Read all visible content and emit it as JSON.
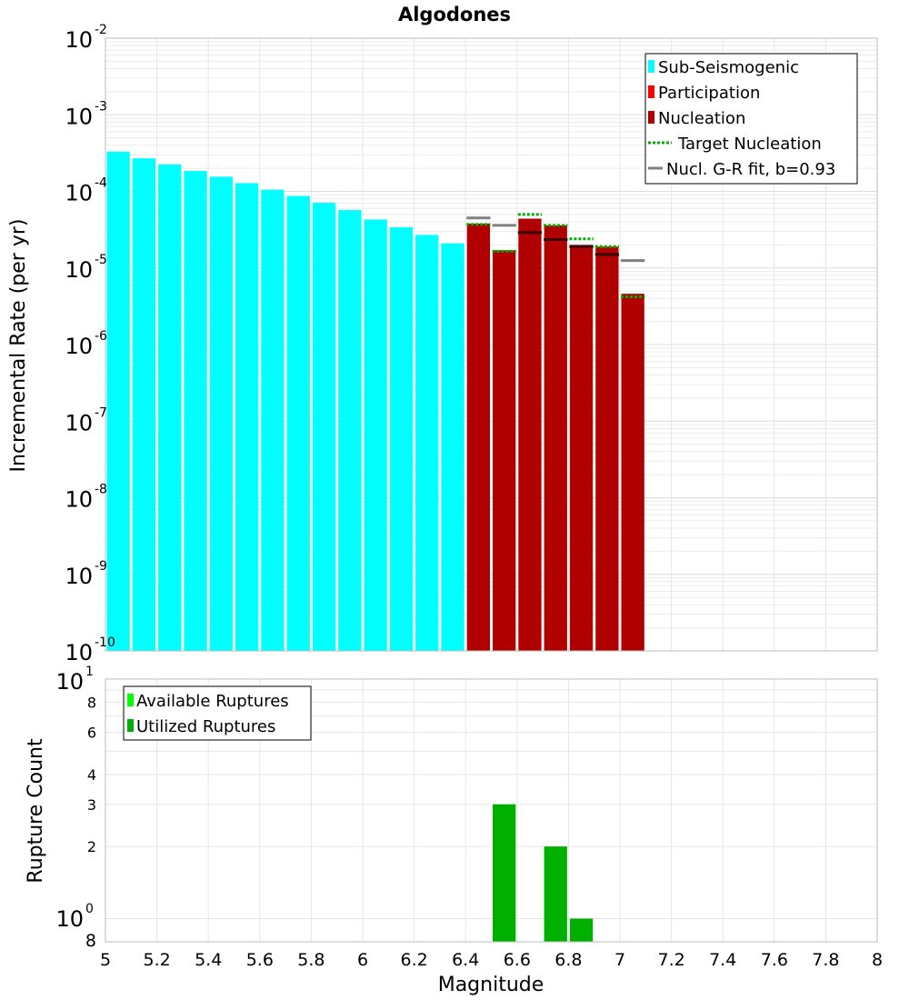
{
  "chart_data": [
    {
      "type": "bar",
      "title": "Algodones",
      "ylabel": "Incremental Rate (per yr)",
      "yscale": "log",
      "ylim_exponents": [
        -10,
        -2
      ],
      "xlim": [
        5,
        8
      ],
      "grid": true,
      "legend": {
        "placement": "top-right",
        "entries": [
          {
            "label": "Sub-Seismogenic",
            "color": "#00ffff",
            "style": "bar"
          },
          {
            "label": "Participation",
            "color": "#ff0000",
            "style": "bar"
          },
          {
            "label": "Nucleation",
            "color": "#b00000",
            "style": "bar"
          },
          {
            "label": "Target Nucleation",
            "color": "#00b000",
            "style": "dotted-line"
          },
          {
            "label": "Nucl. G-R fit, b=0.93",
            "color": "#808080",
            "style": "line"
          }
        ]
      },
      "series": [
        {
          "name": "Sub-Seismogenic",
          "kind": "bar",
          "color": "#00ffff",
          "x": [
            5.05,
            5.15,
            5.25,
            5.35,
            5.45,
            5.55,
            5.65,
            5.75,
            5.85,
            5.95,
            6.05,
            6.15,
            6.25,
            6.35
          ],
          "values": [
            0.00033,
            0.00027,
            0.000225,
            0.000185,
            0.000155,
            0.000128,
            0.000105,
            8.7e-05,
            7.1e-05,
            5.7e-05,
            4.3e-05,
            3.4e-05,
            2.7e-05,
            2.1e-05
          ]
        },
        {
          "name": "Participation",
          "kind": "bar",
          "color": "#ff0000",
          "x": [
            6.45,
            6.55,
            6.65,
            6.75,
            6.85,
            6.95,
            7.05
          ],
          "values": [
            3.8e-05,
            1.7e-05,
            4.4e-05,
            3.6e-05,
            2e-05,
            1.9e-05,
            4.6e-06
          ]
        },
        {
          "name": "Nucleation",
          "kind": "bar",
          "color": "#b00000",
          "x": [
            6.45,
            6.55,
            6.65,
            6.75,
            6.85,
            6.95,
            7.05
          ],
          "values": [
            3.8e-05,
            1.7e-05,
            4.4e-05,
            3.6e-05,
            2e-05,
            1.9e-05,
            4.6e-06
          ]
        },
        {
          "name": "Target Nucleation",
          "kind": "dotted-line",
          "color": "#00b000",
          "x": [
            6.45,
            6.55,
            6.65,
            6.75,
            6.85,
            6.95,
            7.05
          ],
          "values": [
            3.7e-05,
            1.65e-05,
            5e-05,
            3.6e-05,
            2.4e-05,
            1.9e-05,
            4.2e-06
          ]
        },
        {
          "name": "Nucl. G-R fit, b=0.93",
          "kind": "line",
          "color": "#808080",
          "x": [
            6.45,
            6.55,
            6.65,
            6.75,
            6.85,
            6.95,
            7.05
          ],
          "values": [
            4.5e-05,
            3.6e-05,
            2.9e-05,
            2.35e-05,
            1.9e-05,
            1.5e-05,
            1.25e-05
          ]
        }
      ]
    },
    {
      "type": "bar",
      "xlabel": "Magnitude",
      "ylabel": "Rupture Count",
      "yscale": "log",
      "ylim": [
        0.8,
        10
      ],
      "xlim": [
        5,
        8
      ],
      "grid": true,
      "x_ticks": [
        "5",
        "5.2",
        "5.4",
        "5.6",
        "5.8",
        "6",
        "6.2",
        "6.4",
        "6.6",
        "6.8",
        "7",
        "7.2",
        "7.4",
        "7.6",
        "7.8",
        "8"
      ],
      "y_ticks": [
        {
          "value": 8,
          "label": "8"
        },
        {
          "value": 6,
          "label": "6"
        },
        {
          "value": 4,
          "label": "4"
        },
        {
          "value": 3,
          "label": "3"
        },
        {
          "value": 2,
          "label": "2"
        }
      ],
      "legend": {
        "placement": "top-left",
        "entries": [
          {
            "label": "Available Ruptures",
            "color": "#00ff00"
          },
          {
            "label": "Utilized Ruptures",
            "color": "#00b000"
          }
        ]
      },
      "series": [
        {
          "name": "Utilized Ruptures",
          "color": "#00b000",
          "x": [
            6.55,
            6.75,
            6.85
          ],
          "values": [
            3,
            2,
            1
          ]
        }
      ]
    }
  ]
}
